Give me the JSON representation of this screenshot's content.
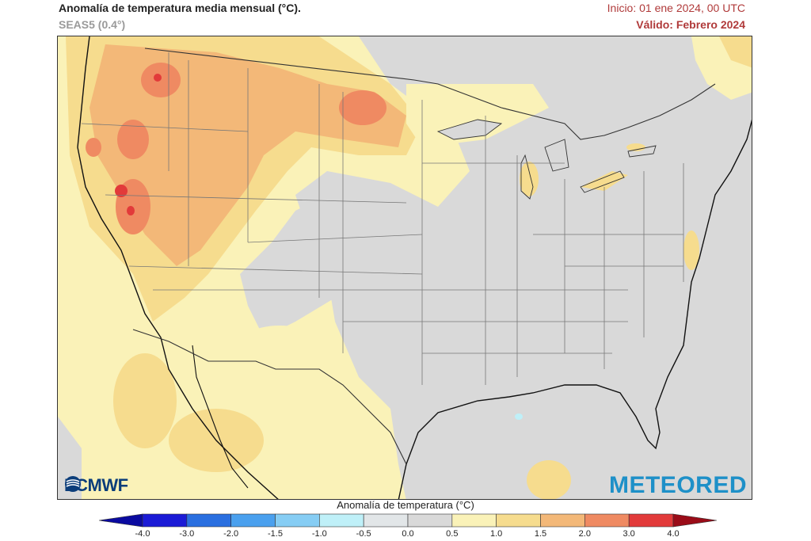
{
  "header": {
    "title": "Anomalía de temperatura media mensual (°C).",
    "subtitle": "SEAS5 (0.4°)",
    "init": "Inicio: 01 ene 2024, 00 UTC",
    "valid": "Válido: Febrero 2024"
  },
  "logos": {
    "ecmwf": "ECMWF",
    "meteored": "METEORED"
  },
  "colorbar": {
    "title": "Anomalía de temperatura (°C)",
    "ticks": [
      "-4.0",
      "-3.0",
      "-2.0",
      "-1.5",
      "-1.0",
      "-0.5",
      "0.0",
      "0.5",
      "1.0",
      "1.5",
      "2.0",
      "3.0",
      "4.0"
    ],
    "colors": [
      "#1b1bd6",
      "#2a6fe0",
      "#4aa0ee",
      "#86cdf4",
      "#bff0f8",
      "#e2e6e8",
      "#d9d9d9",
      "#faf2b8",
      "#f6dc8e",
      "#f3b878",
      "#ef8a62",
      "#e23a3a",
      "#c3121e"
    ],
    "end_low": "#0a0aa0",
    "end_high": "#9a0c18"
  },
  "map_palette": {
    "neutral": "#d9d9d9",
    "light_yellow": "#faf2b8",
    "yellow": "#f6dc8e",
    "orange": "#f3b878",
    "dark_orange": "#ef8a62",
    "red": "#e23a3a",
    "light_blue": "#bff0f8"
  }
}
